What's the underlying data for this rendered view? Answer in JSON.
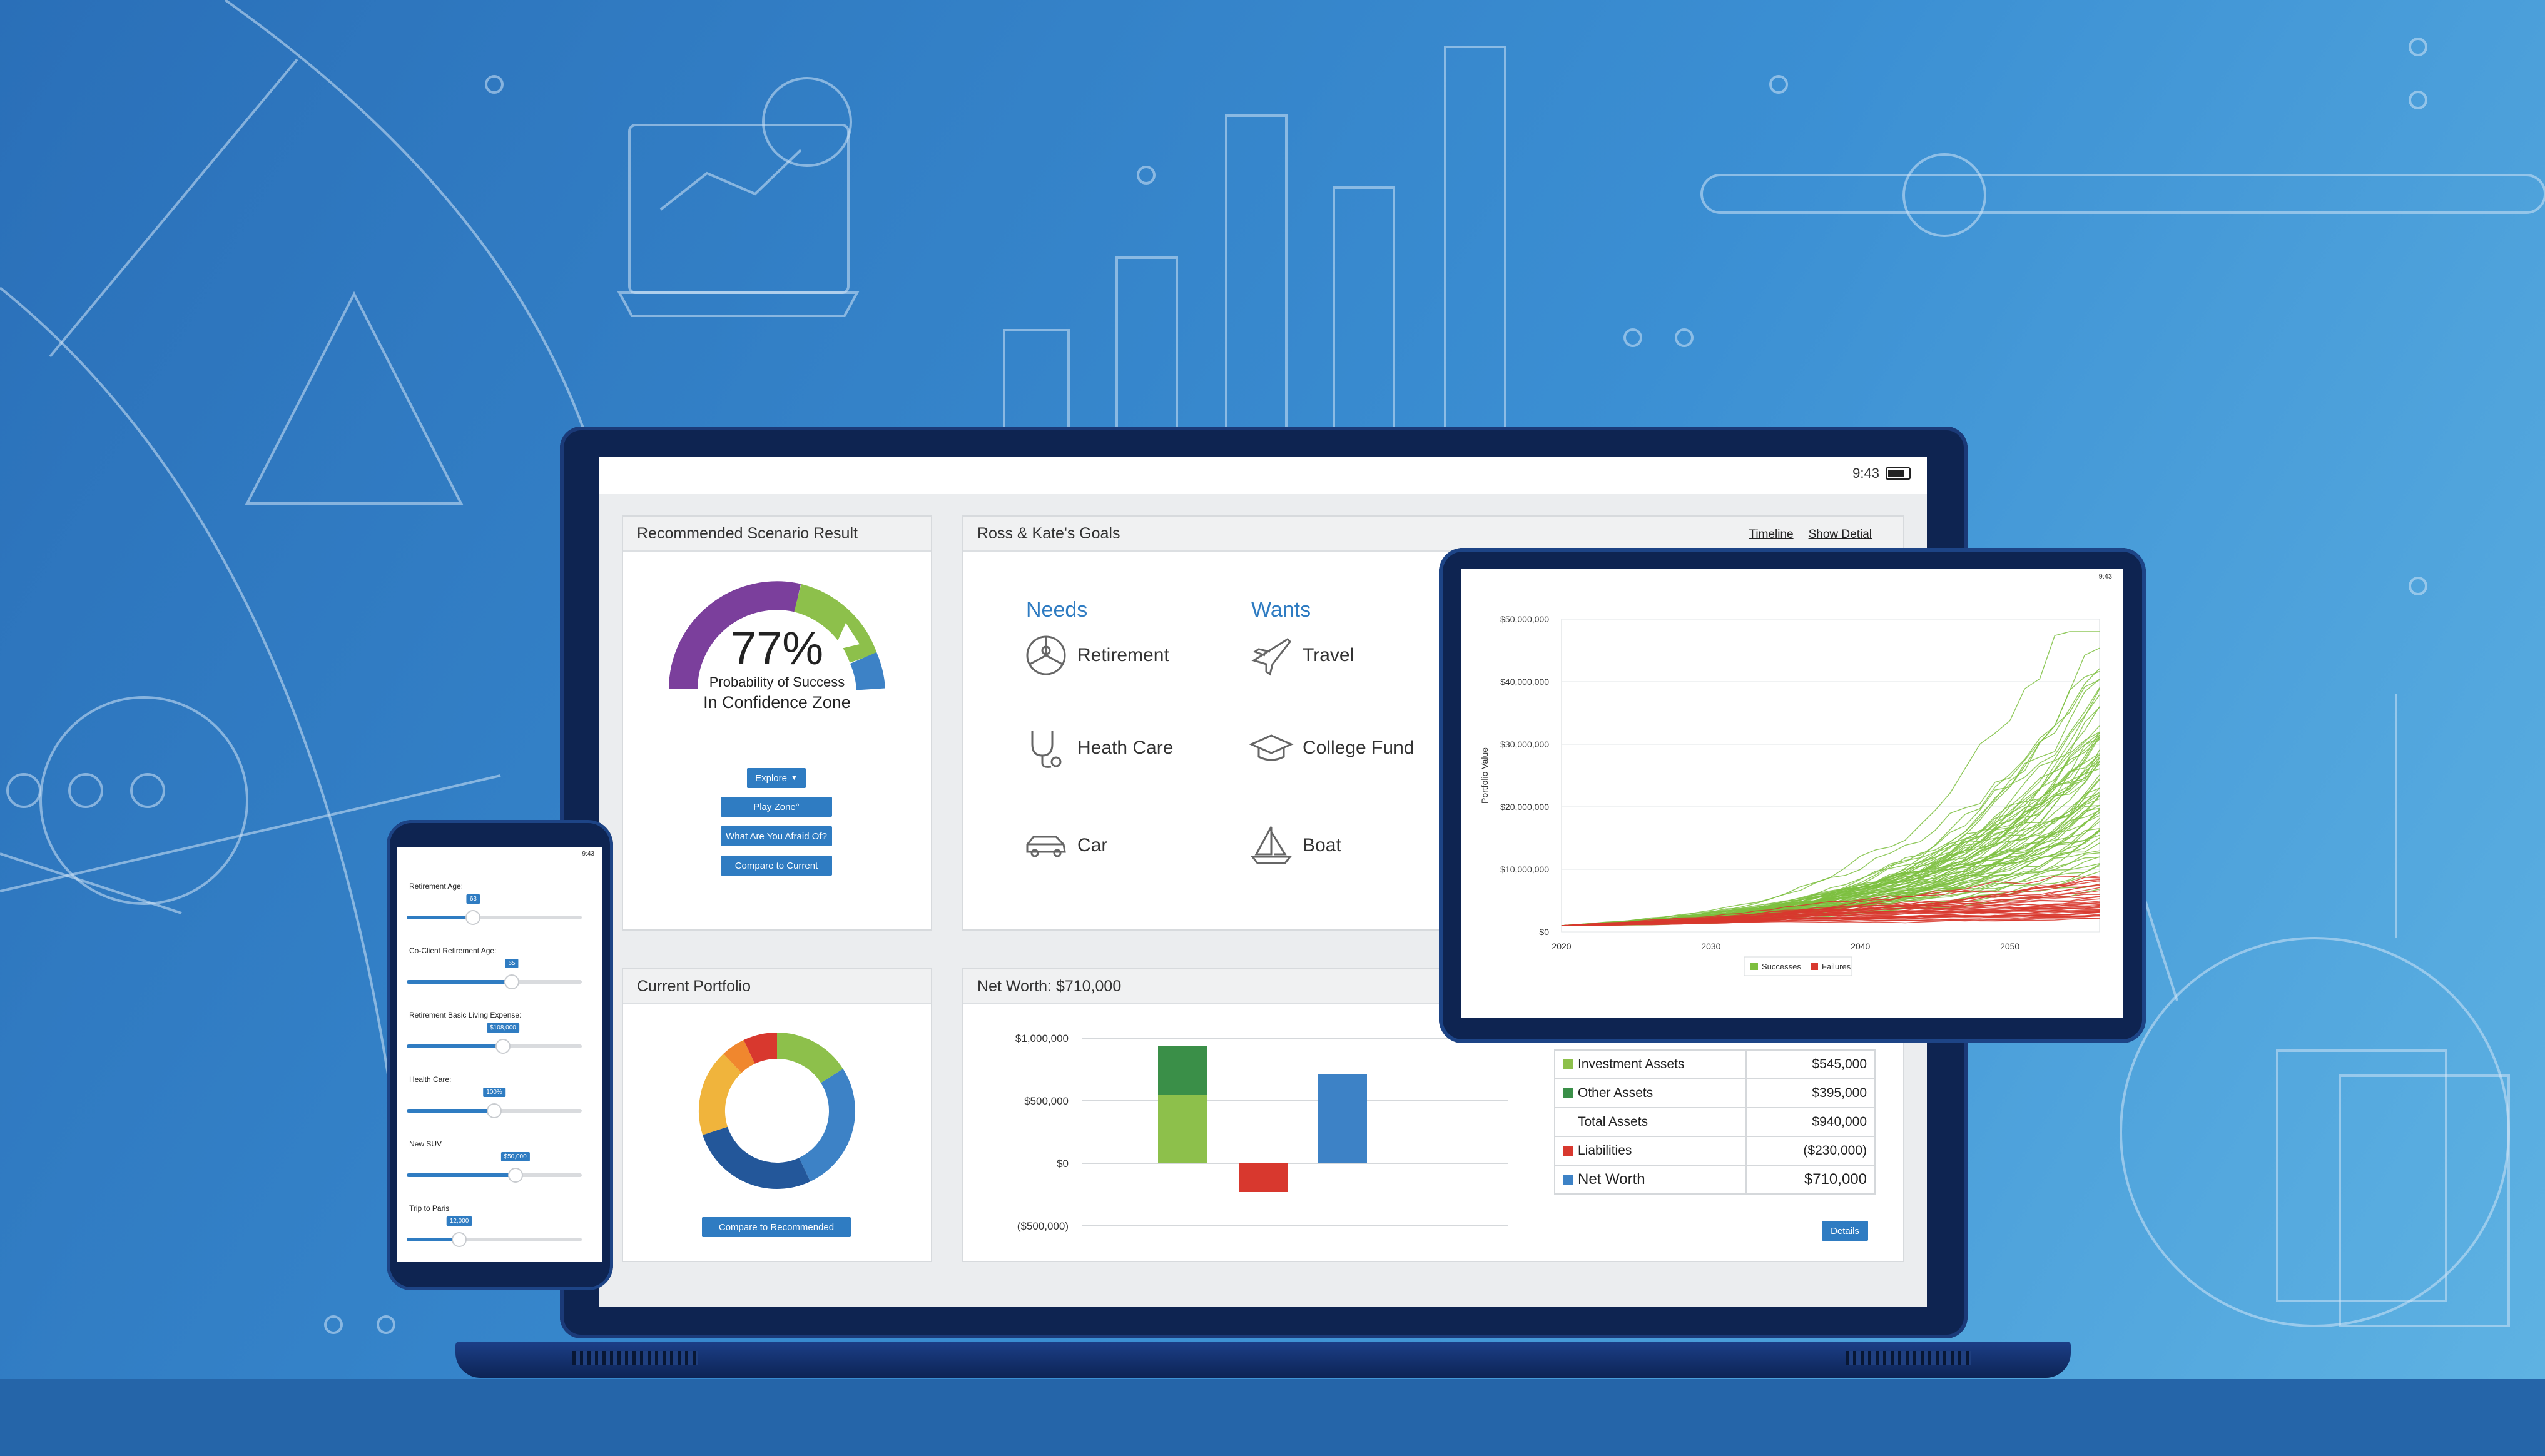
{
  "laptop": {
    "time": "9:43",
    "scenario": {
      "title": "Recommended Scenario Result",
      "percent": "77%",
      "caption": "Probability of Success",
      "zone": "In Confidence Zone",
      "probability": 0.77,
      "buttons": {
        "explore": "Explore",
        "play_zone": "Play Zone°",
        "afraid": "What Are You Afraid Of?",
        "compare": "Compare to Current"
      }
    },
    "goals": {
      "title": "Ross & Kate's Goals",
      "links": {
        "timeline": "Timeline",
        "show_detail": "Show Detial"
      },
      "needs_title": "Needs",
      "wants_title": "Wants",
      "needs": [
        {
          "label": "Retirement",
          "icon": "retirement-icon"
        },
        {
          "label": "Heath Care",
          "icon": "stethoscope-icon"
        },
        {
          "label": "Car",
          "icon": "car-icon"
        }
      ],
      "wants": [
        {
          "label": "Travel",
          "icon": "airplane-icon"
        },
        {
          "label": "College Fund",
          "icon": "graduation-cap-icon"
        },
        {
          "label": "Boat",
          "icon": "sailboat-icon"
        }
      ]
    },
    "portfolio": {
      "title": "Current Portfolio",
      "button": "Compare to Recommended",
      "slices": [
        {
          "color": "#8dc04b",
          "value": 16
        },
        {
          "color": "#3d82c6",
          "value": 27
        },
        {
          "color": "#23579a",
          "value": 27
        },
        {
          "color": "#f0b43c",
          "value": 18
        },
        {
          "color": "#f0872e",
          "value": 5
        },
        {
          "color": "#d8382e",
          "value": 7
        }
      ]
    },
    "net_worth": {
      "title": "Net Worth: $710,000",
      "details_button": "Details",
      "rows": [
        {
          "label": "Investment Assets",
          "value": "$545,000",
          "color": "#8dc04b"
        },
        {
          "label": "Other Assets",
          "value": "$395,000",
          "color": "#3a8f48"
        },
        {
          "label": "Total Assets",
          "value": "$940,000",
          "color": ""
        },
        {
          "label": "Liabilities",
          "value": "($230,000)",
          "color": "#d8382e"
        },
        {
          "label": "Net Worth",
          "value": "$710,000",
          "color": "#3d82c6"
        }
      ]
    }
  },
  "tablet": {
    "time": "9:43"
  },
  "phone": {
    "time": "9:43",
    "sliders": [
      {
        "label": "Retirement Age:",
        "value_text": "63",
        "fraction": 0.38
      },
      {
        "label": "Co-Client Retirement Age:",
        "value_text": "65",
        "fraction": 0.6
      },
      {
        "label": "Retirement Basic Living Expense:",
        "value_text": "$108,000",
        "fraction": 0.55
      },
      {
        "label": "Health Care:",
        "value_text": "100%",
        "fraction": 0.5
      },
      {
        "label": "New SUV",
        "value_text": "$50,000",
        "fraction": 0.62
      },
      {
        "label": "Trip to Paris",
        "value_text": "12,000",
        "fraction": 0.3
      }
    ]
  },
  "chart_data": [
    {
      "type": "bar",
      "categories": [
        "Investment Assets / Other Assets",
        "Liabilities",
        "Net Worth"
      ],
      "series": [
        {
          "name": "Investment Assets",
          "values": [
            545000,
            0,
            0
          ],
          "color": "#8dc04b"
        },
        {
          "name": "Other Assets",
          "values": [
            395000,
            0,
            0
          ],
          "color": "#3a8f48"
        },
        {
          "name": "Liabilities",
          "values": [
            0,
            -230000,
            0
          ],
          "color": "#d8382e"
        },
        {
          "name": "Net Worth",
          "values": [
            0,
            0,
            710000
          ],
          "color": "#3d82c6"
        }
      ],
      "ylim": [
        -500000,
        1000000
      ],
      "yticks": [
        "$1,000,000",
        "$500,000",
        "$0",
        "($500,000)"
      ],
      "grid": true
    },
    {
      "type": "line",
      "ylabel": "Portfolio Value",
      "xticks": [
        "2020",
        "2030",
        "2040",
        "2050"
      ],
      "yticks": [
        "$50,000,000",
        "$40,000,000",
        "$30,000,000",
        "$20,000,000",
        "$10,000,000",
        "$0"
      ],
      "xlim": [
        2020,
        2056
      ],
      "ylim": [
        0,
        50000000
      ],
      "legend": [
        "Successes",
        "Failures"
      ],
      "legend_position": "bottom",
      "colors": {
        "Successes": "#7dbf3f",
        "Failures": "#d8382e"
      },
      "grid": true
    }
  ]
}
